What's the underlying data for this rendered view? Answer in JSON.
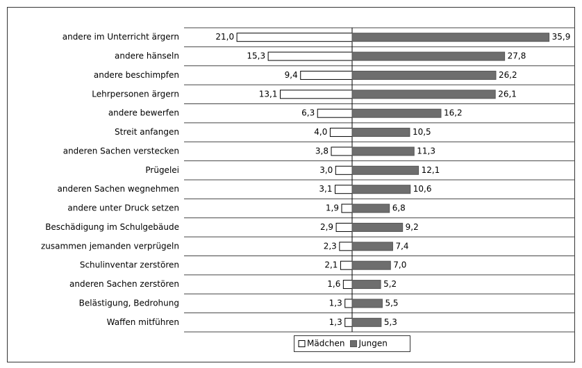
{
  "chart_data": {
    "type": "diverging-bar",
    "categories": [
      "andere im Unterricht ärgern",
      "andere hänseln",
      "andere beschimpfen",
      "Lehrpersonen ärgern",
      "andere bewerfen",
      "Streit anfangen",
      "anderen Sachen verstecken",
      "Prügelei",
      "anderen Sachen wegnehmen",
      "andere unter Druck setzen",
      "Beschädigung im Schulgebäude",
      "zusammen jemanden verprügeln",
      "Schulinventar zerstören",
      "anderen Sachen zerstören",
      "Belästigung, Bedrohung",
      "Waffen mitführen"
    ],
    "series": [
      {
        "name": "Mädchen",
        "color": "#ffffff",
        "values": [
          21.0,
          15.3,
          9.4,
          13.1,
          6.3,
          4.0,
          3.8,
          3.0,
          3.1,
          1.9,
          2.9,
          2.3,
          2.1,
          1.6,
          1.3,
          1.3
        ],
        "value_labels": [
          "21,0",
          "15,3",
          "9,4",
          "13,1",
          "6,3",
          "4,0",
          "3,8",
          "3,0",
          "3,1",
          "1,9",
          "2,9",
          "2,3",
          "2,1",
          "1,6",
          "1,3",
          "1,3"
        ]
      },
      {
        "name": "Jungen",
        "color": "#6e6e6e",
        "values": [
          35.9,
          27.8,
          26.2,
          26.1,
          16.2,
          10.5,
          11.3,
          12.1,
          10.6,
          6.8,
          9.2,
          7.4,
          7.0,
          5.2,
          5.5,
          5.3
        ],
        "value_labels": [
          "35,9",
          "27,8",
          "26,2",
          "26,1",
          "16,2",
          "10,5",
          "11,3",
          "12,1",
          "10,6",
          "6,8",
          "9,2",
          "7,4",
          "7,0",
          "5,2",
          "5,5",
          "5,3"
        ]
      }
    ],
    "grid": true,
    "legend": "bottom"
  }
}
